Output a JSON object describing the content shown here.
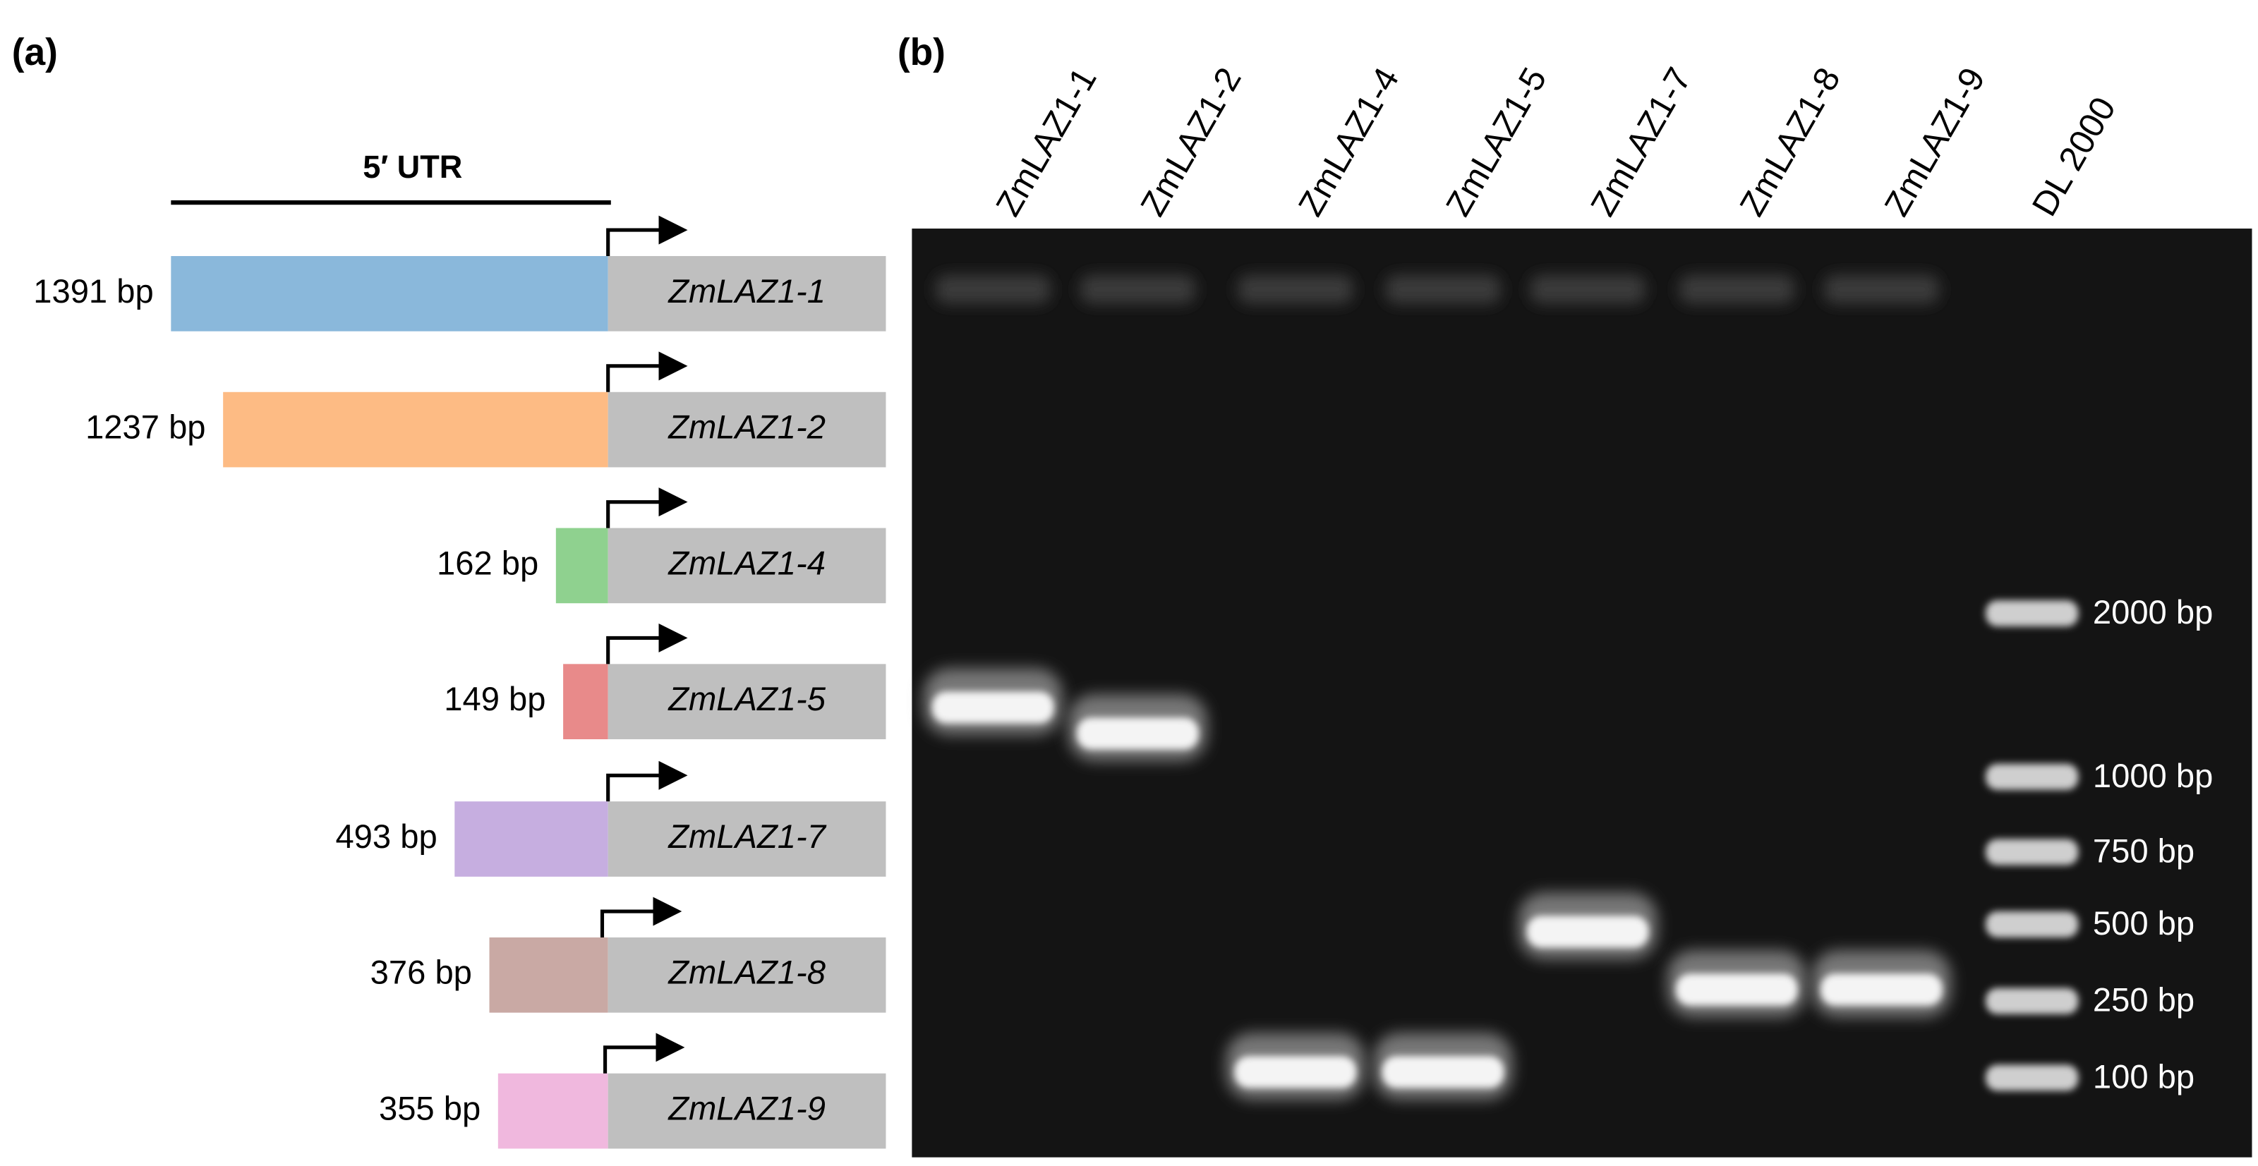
{
  "panel_a": {
    "label": "(a)",
    "utr_label": "5′ UTR",
    "rows": [
      {
        "length": "1391 bp",
        "gene": "ZmLAZ1-1"
      },
      {
        "length": "1237 bp",
        "gene": "ZmLAZ1-2"
      },
      {
        "length": "162 bp",
        "gene": "ZmLAZ1-4"
      },
      {
        "length": "149 bp",
        "gene": "ZmLAZ1-5"
      },
      {
        "length": "493 bp",
        "gene": "ZmLAZ1-7"
      },
      {
        "length": "376 bp",
        "gene": "ZmLAZ1-8"
      },
      {
        "length": "355 bp",
        "gene": "ZmLAZ1-9"
      }
    ]
  },
  "panel_b": {
    "label": "(b)",
    "lanes": [
      "ZmLAZ1-1",
      "ZmLAZ1-2",
      "ZmLAZ1-4",
      "ZmLAZ1-5",
      "ZmLAZ1-7",
      "ZmLAZ1-8",
      "ZmLAZ1-9",
      "DL 2000"
    ],
    "markers": [
      "2000 bp",
      "1000 bp",
      "750 bp",
      "500 bp",
      "250 bp",
      "100 bp"
    ]
  }
}
